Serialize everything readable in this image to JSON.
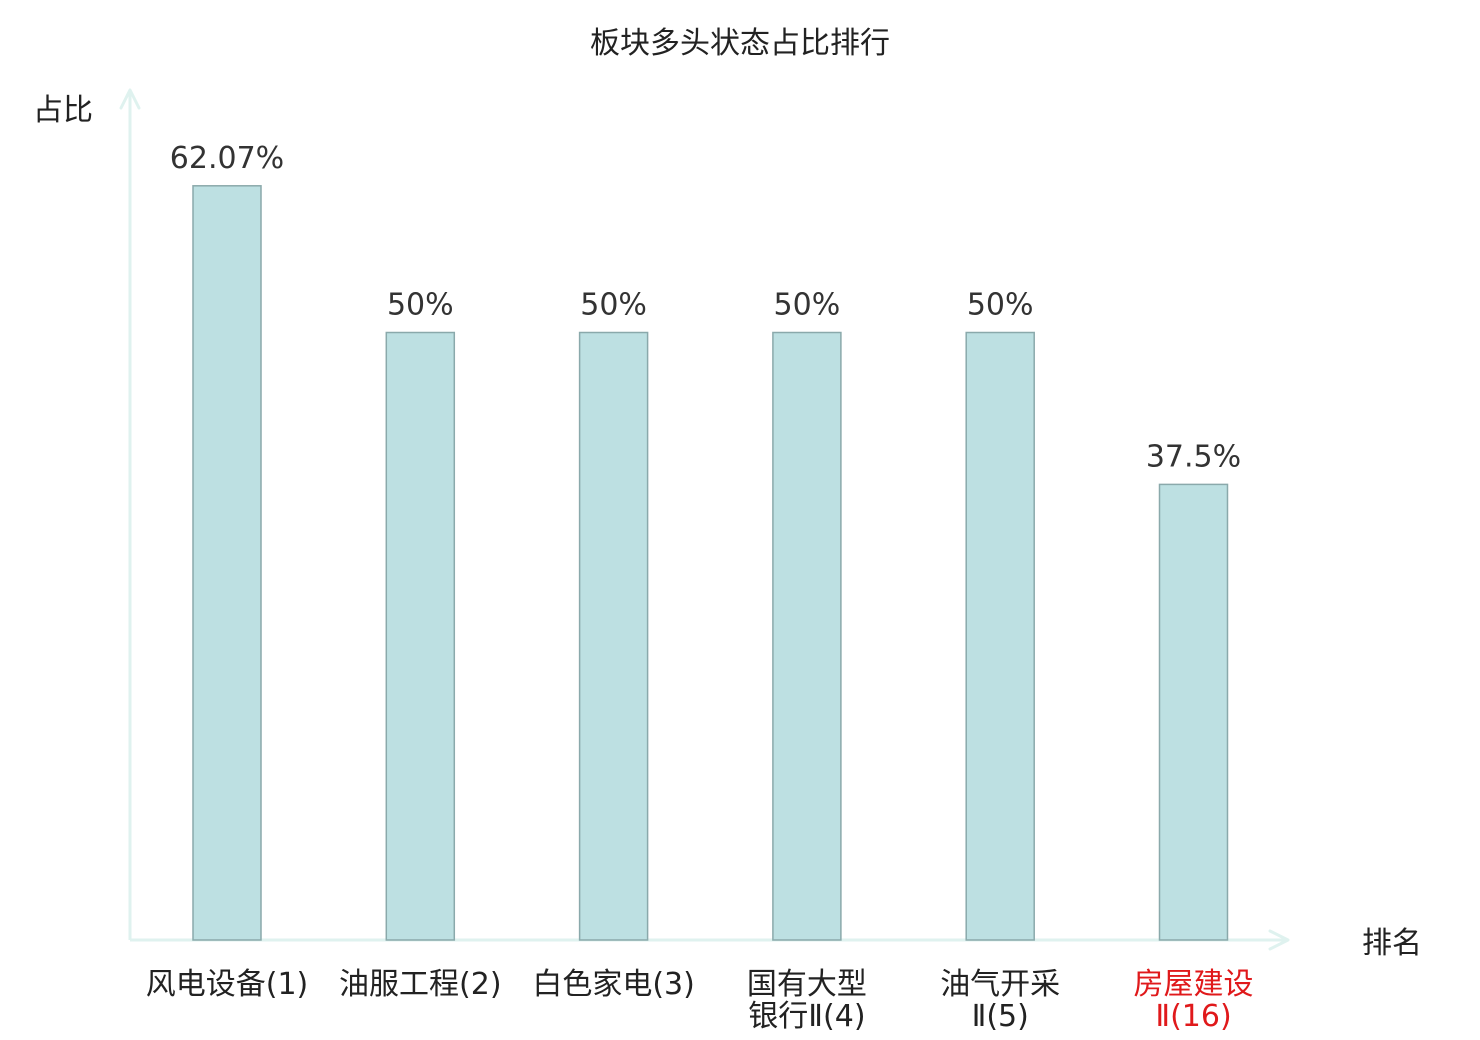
{
  "chart_data": {
    "type": "bar",
    "title": "板块多头状态占比排行",
    "xlabel": "排名",
    "ylabel": "占比",
    "ylim": [
      0,
      0.8
    ],
    "grid": false,
    "legend": "none",
    "categories": [
      {
        "lines": [
          "风电设备(1)"
        ],
        "highlight": false
      },
      {
        "lines": [
          "油服工程(2)"
        ],
        "highlight": false
      },
      {
        "lines": [
          "白色家电(3)"
        ],
        "highlight": false
      },
      {
        "lines": [
          "国有大型",
          "银行Ⅱ(4)"
        ],
        "highlight": false
      },
      {
        "lines": [
          "油气开采",
          "Ⅱ(5)"
        ],
        "highlight": false
      },
      {
        "lines": [
          "房屋建设",
          "Ⅱ(16)"
        ],
        "highlight": true
      }
    ],
    "values": [
      0.6207,
      0.5,
      0.5,
      0.5,
      0.5,
      0.375
    ],
    "value_labels": [
      "62.07%",
      "50%",
      "50%",
      "50%",
      "50%",
      "37.5%"
    ],
    "colors": {
      "bar_fill": "#bde0e2",
      "bar_stroke": "#8aa9ab",
      "axis": "#dff2ef",
      "label": "#222222",
      "highlight": "#e0191b"
    }
  }
}
